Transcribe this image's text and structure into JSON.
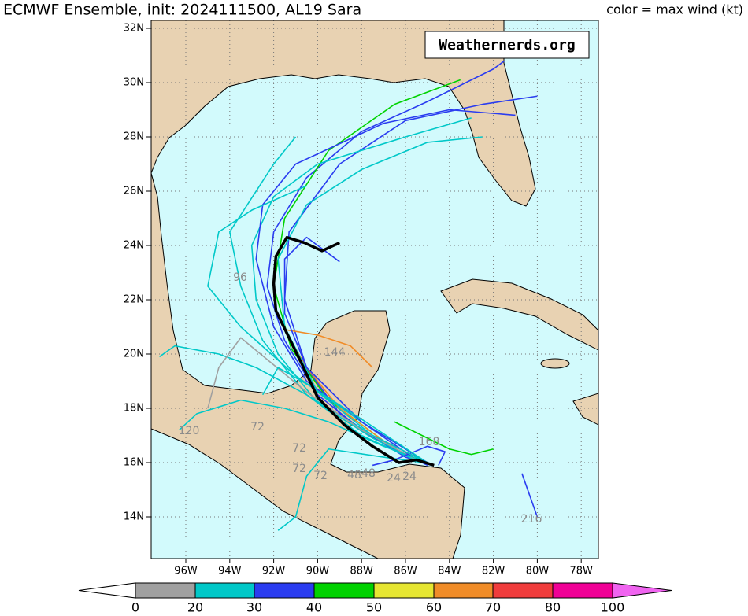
{
  "header": {
    "title": "ECMWF Ensemble, init: 2024111500, AL19 Sara",
    "color_note": "color = max wind (kt)"
  },
  "watermark": "Weathernerds.org",
  "axes": {
    "lat_ticks": [
      {
        "value": 32,
        "label": "32N"
      },
      {
        "value": 30,
        "label": "30N"
      },
      {
        "value": 28,
        "label": "28N"
      },
      {
        "value": 26,
        "label": "26N"
      },
      {
        "value": 24,
        "label": "24N"
      },
      {
        "value": 22,
        "label": "22N"
      },
      {
        "value": 20,
        "label": "20N"
      },
      {
        "value": 18,
        "label": "18N"
      },
      {
        "value": 16,
        "label": "16N"
      },
      {
        "value": 14,
        "label": "14N"
      }
    ],
    "lon_ticks": [
      {
        "value": 96,
        "label": "96W"
      },
      {
        "value": 94,
        "label": "94W"
      },
      {
        "value": 92,
        "label": "92W"
      },
      {
        "value": 90,
        "label": "90W"
      },
      {
        "value": 88,
        "label": "88W"
      },
      {
        "value": 86,
        "label": "86W"
      },
      {
        "value": 84,
        "label": "84W"
      },
      {
        "value": 82,
        "label": "82W"
      },
      {
        "value": 80,
        "label": "80W"
      },
      {
        "value": 78,
        "label": "78W"
      }
    ]
  },
  "colorbar": {
    "levels": [
      0,
      20,
      30,
      40,
      50,
      60,
      70,
      80,
      100
    ],
    "colors": [
      "#ffffff",
      "#a0a0a0",
      "#00c8c8",
      "#2a3cf0",
      "#00d200",
      "#e6e632",
      "#f08c28",
      "#f03c3c",
      "#f00096",
      "#f064f0"
    ]
  },
  "hour_labels": [
    "96",
    "144",
    "120",
    "72",
    "72",
    "72",
    "168",
    "216",
    "24",
    "48",
    "48",
    "24",
    "72"
  ],
  "tracks": [
    {
      "color": "#2a3cf0",
      "points": [
        [
          84.7,
          15.9
        ],
        [
          86,
          16.2
        ],
        [
          88,
          17.2
        ],
        [
          90,
          18.5
        ],
        [
          91.5,
          20.5
        ],
        [
          92.3,
          22.5
        ],
        [
          92,
          24.5
        ],
        [
          90.5,
          26.5
        ],
        [
          88,
          28.2
        ],
        [
          85,
          29.3
        ],
        [
          82,
          30.5
        ],
        [
          81.5,
          30.8
        ]
      ]
    },
    {
      "color": "#00d200",
      "points": [
        [
          85,
          16
        ],
        [
          87,
          16.8
        ],
        [
          89.5,
          18.3
        ],
        [
          91.2,
          20.2
        ],
        [
          92,
          22.5
        ],
        [
          91.5,
          25
        ],
        [
          89.5,
          27.5
        ],
        [
          86.5,
          29.2
        ],
        [
          83.5,
          30.1
        ]
      ]
    },
    {
      "color": "#2a3cf0",
      "points": [
        [
          85,
          15.9
        ],
        [
          87,
          16.7
        ],
        [
          89,
          17.8
        ],
        [
          90.5,
          19.5
        ],
        [
          91.5,
          22
        ],
        [
          91.3,
          24.5
        ],
        [
          89,
          27
        ],
        [
          86,
          28.6
        ],
        [
          82.5,
          29.2
        ],
        [
          80,
          29.5
        ]
      ]
    },
    {
      "color": "#00c8c8",
      "points": [
        [
          85.2,
          16
        ],
        [
          87.5,
          16.9
        ],
        [
          90,
          18.2
        ],
        [
          91.8,
          20
        ],
        [
          92.8,
          22
        ],
        [
          93,
          24
        ],
        [
          92,
          25.8
        ],
        [
          90,
          27
        ],
        [
          86,
          28
        ],
        [
          83,
          28.7
        ]
      ]
    },
    {
      "color": "#2a3cf0",
      "points": [
        [
          85.5,
          16.1
        ],
        [
          88,
          17.5
        ],
        [
          90.5,
          19
        ],
        [
          92,
          21
        ],
        [
          92.8,
          23.5
        ],
        [
          92.5,
          25.5
        ],
        [
          91,
          27
        ],
        [
          87,
          28.5
        ],
        [
          84,
          29
        ],
        [
          81,
          28.8
        ]
      ]
    },
    {
      "color": "#00c8c8",
      "points": [
        [
          85.3,
          16
        ],
        [
          88,
          17
        ],
        [
          90.5,
          18.5
        ],
        [
          92.5,
          20.5
        ],
        [
          93.5,
          22.5
        ],
        [
          94,
          24.5
        ],
        [
          92,
          27
        ],
        [
          91,
          28
        ]
      ]
    },
    {
      "color": "#00c8c8",
      "points": [
        [
          85,
          16
        ],
        [
          87.5,
          17
        ],
        [
          90.5,
          18.5
        ],
        [
          92.8,
          19.5
        ],
        [
          94.5,
          20
        ],
        [
          96.5,
          20.3
        ],
        [
          97.2,
          19.9
        ]
      ]
    },
    {
      "color": "#a0a0a0",
      "points": [
        [
          85.5,
          16.1
        ],
        [
          88,
          17.2
        ],
        [
          90.5,
          18.6
        ],
        [
          92.3,
          19.8
        ],
        [
          93.5,
          20.6
        ],
        [
          94.5,
          19.5
        ],
        [
          95,
          18
        ]
      ]
    },
    {
      "color": "#f08c28",
      "points": [
        [
          85,
          16
        ],
        [
          87,
          16.8
        ],
        [
          89,
          18
        ],
        [
          90.5,
          19.5
        ],
        [
          91.5,
          20.9
        ],
        [
          90,
          20.7
        ],
        [
          88.5,
          20.3
        ],
        [
          87.5,
          19.5
        ]
      ]
    },
    {
      "color": "#00c8c8",
      "points": [
        [
          85,
          16
        ],
        [
          87,
          16.6
        ],
        [
          89.5,
          17.5
        ],
        [
          91.5,
          18
        ],
        [
          93.5,
          18.3
        ],
        [
          95.5,
          17.8
        ],
        [
          96.3,
          17.2
        ]
      ]
    },
    {
      "color": "#00c8c8",
      "points": [
        [
          85.2,
          16
        ],
        [
          87,
          16.2
        ],
        [
          89.5,
          16.5
        ],
        [
          90.5,
          15.5
        ],
        [
          91,
          14
        ],
        [
          91.8,
          13.5
        ]
      ]
    },
    {
      "color": "#2a3cf0",
      "points": [
        [
          84.5,
          15.9
        ],
        [
          84.2,
          16.4
        ],
        [
          85,
          16.6
        ],
        [
          86.5,
          16.1
        ],
        [
          87.5,
          15.9
        ]
      ]
    },
    {
      "color": "#00d200",
      "points": [
        [
          86.5,
          17.5
        ],
        [
          84,
          16.5
        ],
        [
          83,
          16.3
        ],
        [
          82,
          16.5
        ]
      ]
    },
    {
      "color": "#2a3cf0",
      "points": [
        [
          80.7,
          15.6
        ],
        [
          80,
          14
        ]
      ]
    },
    {
      "color": "#00c8c8",
      "points": [
        [
          85,
          16
        ],
        [
          88,
          17.5
        ],
        [
          91,
          19.2
        ],
        [
          93.5,
          21
        ],
        [
          95,
          22.5
        ],
        [
          94.5,
          24.5
        ],
        [
          93,
          25.3
        ],
        [
          90.5,
          26.2
        ]
      ]
    },
    {
      "color": "#2a3cf0",
      "points": [
        [
          85,
          16
        ],
        [
          88,
          17.5
        ],
        [
          90.5,
          19.5
        ],
        [
          91.5,
          21.5
        ],
        [
          91.5,
          23.5
        ],
        [
          90.5,
          24.3
        ],
        [
          89,
          23.4
        ]
      ]
    },
    {
      "color": "#00c8c8",
      "points": [
        [
          85.2,
          16.1
        ],
        [
          88,
          17.6
        ],
        [
          90.3,
          18.8
        ],
        [
          91.8,
          19.5
        ],
        [
          92.5,
          18.5
        ]
      ]
    },
    {
      "color": "#00c8c8",
      "points": [
        [
          85,
          16
        ],
        [
          87.5,
          17
        ],
        [
          90,
          18.6
        ],
        [
          91.5,
          21
        ],
        [
          91.8,
          23.5
        ],
        [
          90.5,
          25.5
        ],
        [
          88,
          26.8
        ],
        [
          85,
          27.8
        ],
        [
          82.5,
          28
        ]
      ]
    }
  ],
  "mean_track": {
    "color": "#000000",
    "points": [
      [
        84.7,
        15.9
      ],
      [
        85.5,
        16.1
      ],
      [
        86.3,
        16.0
      ],
      [
        87.5,
        16.6
      ],
      [
        88.8,
        17.4
      ],
      [
        90,
        18.4
      ],
      [
        90.7,
        19.6
      ],
      [
        91.3,
        20.6
      ],
      [
        91.9,
        21.6
      ],
      [
        92.0,
        22.6
      ],
      [
        91.9,
        23.6
      ],
      [
        91.4,
        24.3
      ],
      [
        90.6,
        24.1
      ],
      [
        89.8,
        23.8
      ],
      [
        89.0,
        24.1
      ]
    ]
  }
}
